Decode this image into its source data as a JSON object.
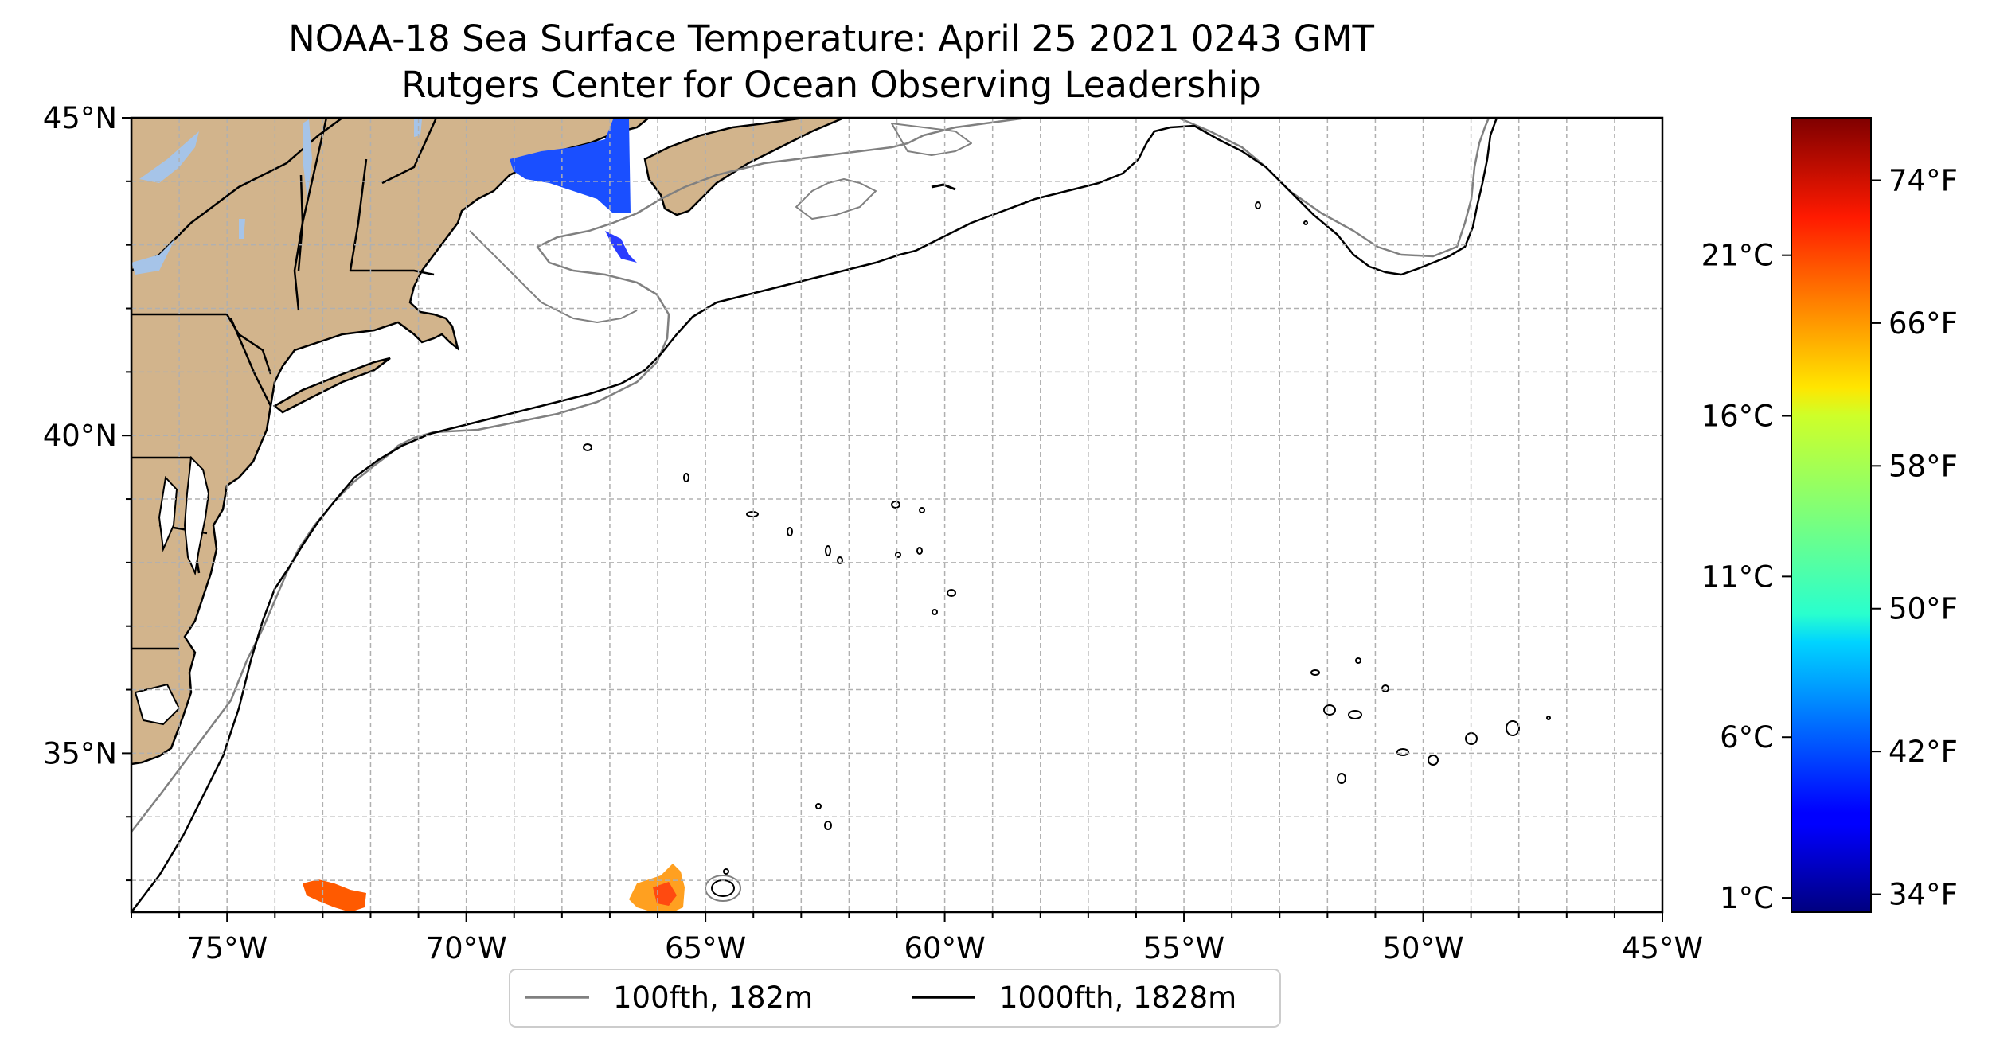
{
  "title": "NOAA-18 Sea Surface Temperature: April 25 2021 0243 GMT",
  "subtitle": "Rutgers Center for Ocean Observing Leadership",
  "map": {
    "lon_range": [
      -77,
      -45
    ],
    "lat_range": [
      32.5,
      45
    ],
    "lon_ticks": [
      "75°W",
      "70°W",
      "65°W",
      "60°W",
      "55°W",
      "50°W",
      "45°W"
    ],
    "lat_ticks": [
      "45°N",
      "40°N",
      "35°N"
    ],
    "grid": true,
    "land_color": "#d2b48c",
    "water_color": "#a6c4e8"
  },
  "colorbar": {
    "colormap": "jet",
    "celsius_ticks": [
      "21°C",
      "16°C",
      "11°C",
      "6°C",
      "1°C"
    ],
    "fahrenheit_ticks": [
      "74°F",
      "66°F",
      "58°F",
      "50°F",
      "42°F",
      "34°F"
    ]
  },
  "legend": {
    "placement": "below",
    "items": [
      {
        "label": "100fth, 182m",
        "color": "#808080"
      },
      {
        "label": "1000fth, 1828m",
        "color": "#000000"
      }
    ]
  }
}
